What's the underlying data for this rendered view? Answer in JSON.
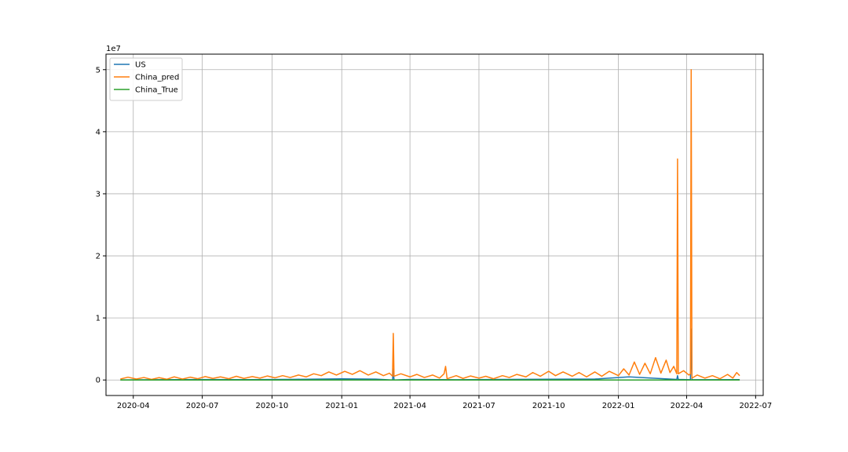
{
  "chart_data": {
    "type": "line",
    "title": "",
    "xlabel": "",
    "ylabel": "",
    "y_offset_label": "1e7",
    "xlim": [
      "2020-02-25",
      "2022-07-11"
    ],
    "ylim": [
      -2500000,
      52500000
    ],
    "x_ticks": [
      {
        "date": "2020-04-01",
        "label": "2020-04"
      },
      {
        "date": "2020-07-01",
        "label": "2020-07"
      },
      {
        "date": "2020-10-01",
        "label": "2020-10"
      },
      {
        "date": "2021-01-01",
        "label": "2021-01"
      },
      {
        "date": "2021-04-01",
        "label": "2021-04"
      },
      {
        "date": "2021-07-01",
        "label": "2021-07"
      },
      {
        "date": "2021-10-01",
        "label": "2021-10"
      },
      {
        "date": "2022-01-01",
        "label": "2022-01"
      },
      {
        "date": "2022-04-01",
        "label": "2022-04"
      },
      {
        "date": "2022-07-01",
        "label": "2022-07"
      }
    ],
    "y_ticks": [
      {
        "value": 0,
        "label": "0"
      },
      {
        "value": 10000000,
        "label": "1"
      },
      {
        "value": 20000000,
        "label": "2"
      },
      {
        "value": 30000000,
        "label": "3"
      },
      {
        "value": 40000000,
        "label": "4"
      },
      {
        "value": 50000000,
        "label": "5"
      }
    ],
    "grid": true,
    "legend_position": "top-left",
    "series": [
      {
        "name": "US",
        "color": "#1f77b4",
        "points": [
          [
            "2020-03-15",
            20000
          ],
          [
            "2020-05-01",
            50000
          ],
          [
            "2020-07-01",
            70000
          ],
          [
            "2020-09-01",
            60000
          ],
          [
            "2020-11-01",
            110000
          ],
          [
            "2021-01-01",
            180000
          ],
          [
            "2021-02-15",
            140000
          ],
          [
            "2021-03-09",
            0
          ],
          [
            "2021-03-10",
            1800000
          ],
          [
            "2021-03-11",
            0
          ],
          [
            "2021-04-01",
            90000
          ],
          [
            "2021-06-01",
            40000
          ],
          [
            "2021-08-01",
            90000
          ],
          [
            "2021-10-01",
            130000
          ],
          [
            "2021-12-01",
            150000
          ],
          [
            "2022-01-15",
            500000
          ],
          [
            "2022-02-15",
            300000
          ],
          [
            "2022-03-19",
            100000
          ],
          [
            "2022-03-20",
            700000
          ],
          [
            "2022-03-21",
            100000
          ],
          [
            "2022-04-06",
            50000
          ],
          [
            "2022-04-07",
            8200000
          ],
          [
            "2022-04-08",
            50000
          ],
          [
            "2022-06-10",
            60000
          ]
        ]
      },
      {
        "name": "China_pred",
        "color": "#ff7f0e",
        "points": [
          [
            "2020-03-15",
            150000
          ],
          [
            "2020-03-25",
            450000
          ],
          [
            "2020-04-05",
            150000
          ],
          [
            "2020-04-15",
            400000
          ],
          [
            "2020-04-25",
            100000
          ],
          [
            "2020-05-05",
            380000
          ],
          [
            "2020-05-15",
            120000
          ],
          [
            "2020-05-25",
            500000
          ],
          [
            "2020-06-05",
            150000
          ],
          [
            "2020-06-15",
            450000
          ],
          [
            "2020-06-25",
            200000
          ],
          [
            "2020-07-05",
            550000
          ],
          [
            "2020-07-15",
            250000
          ],
          [
            "2020-07-25",
            500000
          ],
          [
            "2020-08-05",
            200000
          ],
          [
            "2020-08-15",
            600000
          ],
          [
            "2020-08-25",
            250000
          ],
          [
            "2020-09-05",
            550000
          ],
          [
            "2020-09-15",
            300000
          ],
          [
            "2020-09-25",
            650000
          ],
          [
            "2020-10-05",
            350000
          ],
          [
            "2020-10-15",
            700000
          ],
          [
            "2020-10-25",
            400000
          ],
          [
            "2020-11-05",
            800000
          ],
          [
            "2020-11-15",
            500000
          ],
          [
            "2020-11-25",
            1000000
          ],
          [
            "2020-12-05",
            700000
          ],
          [
            "2020-12-15",
            1300000
          ],
          [
            "2020-12-25",
            800000
          ],
          [
            "2021-01-05",
            1400000
          ],
          [
            "2021-01-15",
            900000
          ],
          [
            "2021-01-25",
            1500000
          ],
          [
            "2021-02-05",
            800000
          ],
          [
            "2021-02-15",
            1300000
          ],
          [
            "2021-02-25",
            700000
          ],
          [
            "2021-03-05",
            1100000
          ],
          [
            "2021-03-09",
            600000
          ],
          [
            "2021-03-10",
            7500000
          ],
          [
            "2021-03-11",
            600000
          ],
          [
            "2021-03-20",
            1000000
          ],
          [
            "2021-04-01",
            500000
          ],
          [
            "2021-04-10",
            900000
          ],
          [
            "2021-04-20",
            400000
          ],
          [
            "2021-05-01",
            800000
          ],
          [
            "2021-05-10",
            300000
          ],
          [
            "2021-05-16",
            1000000
          ],
          [
            "2021-05-18",
            2200000
          ],
          [
            "2021-05-20",
            200000
          ],
          [
            "2021-06-01",
            700000
          ],
          [
            "2021-06-10",
            250000
          ],
          [
            "2021-06-20",
            650000
          ],
          [
            "2021-07-01",
            300000
          ],
          [
            "2021-07-10",
            600000
          ],
          [
            "2021-07-20",
            200000
          ],
          [
            "2021-08-01",
            700000
          ],
          [
            "2021-08-10",
            400000
          ],
          [
            "2021-08-20",
            900000
          ],
          [
            "2021-09-01",
            500000
          ],
          [
            "2021-09-10",
            1200000
          ],
          [
            "2021-09-20",
            600000
          ],
          [
            "2021-10-01",
            1400000
          ],
          [
            "2021-10-10",
            700000
          ],
          [
            "2021-10-20",
            1300000
          ],
          [
            "2021-11-01",
            600000
          ],
          [
            "2021-11-10",
            1200000
          ],
          [
            "2021-11-20",
            500000
          ],
          [
            "2021-12-01",
            1300000
          ],
          [
            "2021-12-10",
            600000
          ],
          [
            "2021-12-20",
            1400000
          ],
          [
            "2022-01-01",
            700000
          ],
          [
            "2022-01-08",
            1800000
          ],
          [
            "2022-01-15",
            800000
          ],
          [
            "2022-01-22",
            2900000
          ],
          [
            "2022-01-29",
            900000
          ],
          [
            "2022-02-05",
            2700000
          ],
          [
            "2022-02-12",
            1000000
          ],
          [
            "2022-02-19",
            3600000
          ],
          [
            "2022-02-26",
            1100000
          ],
          [
            "2022-03-05",
            3200000
          ],
          [
            "2022-03-10",
            1200000
          ],
          [
            "2022-03-15",
            2200000
          ],
          [
            "2022-03-19",
            1000000
          ],
          [
            "2022-03-20",
            35600000
          ],
          [
            "2022-03-21",
            1000000
          ],
          [
            "2022-03-28",
            1500000
          ],
          [
            "2022-04-04",
            800000
          ],
          [
            "2022-04-06",
            1000000
          ],
          [
            "2022-04-07",
            50000000
          ],
          [
            "2022-04-08",
            300000
          ],
          [
            "2022-04-15",
            800000
          ],
          [
            "2022-04-25",
            300000
          ],
          [
            "2022-05-05",
            700000
          ],
          [
            "2022-05-15",
            200000
          ],
          [
            "2022-05-25",
            900000
          ],
          [
            "2022-06-01",
            300000
          ],
          [
            "2022-06-06",
            1200000
          ],
          [
            "2022-06-10",
            700000
          ]
        ]
      },
      {
        "name": "China_True",
        "color": "#2ca02c",
        "points": [
          [
            "2020-03-15",
            0
          ],
          [
            "2020-10-01",
            0
          ],
          [
            "2021-03-10",
            0
          ],
          [
            "2021-10-01",
            0
          ],
          [
            "2022-03-20",
            0
          ],
          [
            "2022-04-07",
            0
          ],
          [
            "2022-06-10",
            0
          ]
        ]
      }
    ]
  }
}
